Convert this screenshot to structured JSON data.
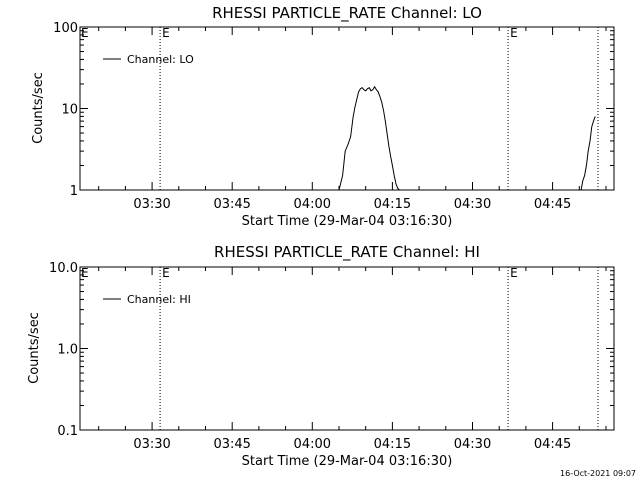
{
  "footer": "16-Oct-2021 09:07",
  "chart_data": [
    {
      "type": "line",
      "title": "RHESSI PARTICLE_RATE Channel: LO",
      "xlabel": "Start Time (29-Mar-04 03:16:30)",
      "ylabel": "Counts/sec",
      "yscale": "log",
      "ylim": [
        1,
        100
      ],
      "ytick_values": [
        1,
        10,
        100
      ],
      "ytick_labels": [
        "1",
        "10",
        "100"
      ],
      "xlim": [
        "03:16:30",
        "04:56:30"
      ],
      "xtick_labels": [
        "03:30",
        "03:45",
        "04:00",
        "04:15",
        "04:30",
        "04:45"
      ],
      "grid": false,
      "legend_position": "top-left",
      "series": [
        {
          "name": "Channel: LO",
          "x": [
            "04:05:00",
            "04:05:40",
            "04:06:10",
            "04:06:40",
            "04:07:10",
            "04:07:40",
            "04:08:00",
            "04:08:20",
            "04:08:40",
            "04:09:00",
            "04:09:20",
            "04:09:40",
            "04:10:00",
            "04:10:20",
            "04:10:40",
            "04:11:00",
            "04:11:20",
            "04:11:40",
            "04:12:00",
            "04:12:20",
            "04:12:40",
            "04:13:00",
            "04:13:20",
            "04:13:40",
            "04:14:00",
            "04:14:20",
            "04:14:40",
            "04:15:00",
            "04:15:20",
            "04:15:40",
            "04:16:00",
            "04:16:20"
          ],
          "y": [
            1.0,
            1.5,
            3.0,
            3.6,
            4.5,
            8.0,
            10.5,
            13.0,
            16.0,
            17.5,
            18.0,
            17.0,
            16.5,
            17.5,
            18.0,
            16.5,
            17.0,
            18.5,
            17.0,
            16.0,
            14.0,
            12.0,
            9.5,
            7.0,
            5.0,
            3.5,
            2.6,
            2.0,
            1.5,
            1.2,
            1.05,
            1.0
          ]
        },
        {
          "name": "Channel: LO",
          "x": [
            "04:50:20",
            "04:50:40",
            "04:51:00",
            "04:51:20",
            "04:51:40",
            "04:52:00",
            "04:52:20",
            "04:52:40",
            "04:53:00"
          ],
          "y": [
            1.0,
            1.3,
            1.5,
            2.0,
            3.0,
            4.0,
            6.0,
            7.0,
            8.0
          ]
        }
      ],
      "markers": [
        {
          "type": "vline",
          "time": "03:31:30",
          "label": "E"
        },
        {
          "type": "vline",
          "time": "04:36:40",
          "label": "E"
        },
        {
          "type": "vline",
          "time": "04:53:30",
          "label": ""
        }
      ]
    },
    {
      "type": "line",
      "title": "RHESSI PARTICLE_RATE Channel: HI",
      "xlabel": "Start Time (29-Mar-04 03:16:30)",
      "ylabel": "Counts/sec",
      "yscale": "log",
      "ylim": [
        0.1,
        10
      ],
      "ytick_values": [
        0.1,
        1,
        10
      ],
      "ytick_labels": [
        "0.1",
        "1.0",
        "10.0"
      ],
      "xlim": [
        "03:16:30",
        "04:56:30"
      ],
      "xtick_labels": [
        "03:30",
        "03:45",
        "04:00",
        "04:15",
        "04:30",
        "04:45"
      ],
      "grid": false,
      "legend_position": "top-left",
      "series": [
        {
          "name": "Channel: HI",
          "x": [],
          "y": []
        }
      ],
      "markers": [
        {
          "type": "vline",
          "time": "03:31:30",
          "label": "E"
        },
        {
          "type": "vline",
          "time": "04:36:40",
          "label": "E"
        },
        {
          "type": "vline",
          "time": "04:53:30",
          "label": ""
        }
      ]
    }
  ]
}
